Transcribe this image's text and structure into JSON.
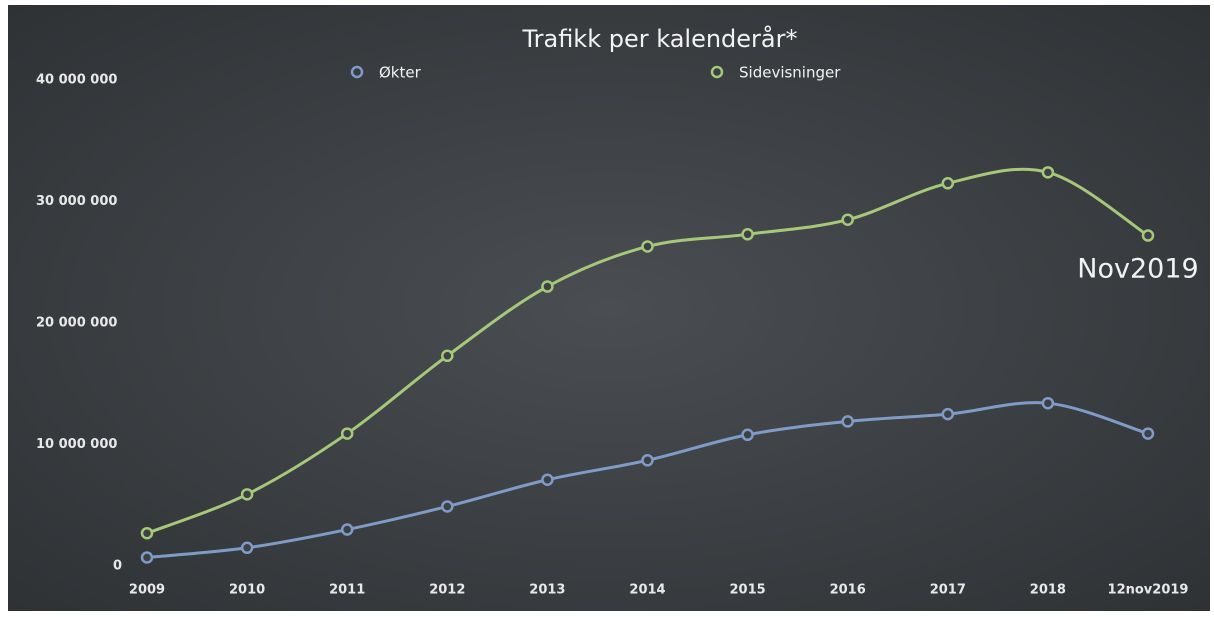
{
  "chart_data": {
    "type": "line",
    "title": "Trafikk per kalenderår*",
    "categories": [
      "2009",
      "2010",
      "2011",
      "2012",
      "2013",
      "2014",
      "2015",
      "2016",
      "2017",
      "2018",
      "12nov2019"
    ],
    "series": [
      {
        "name": "Økter",
        "color": "#7f9bc6",
        "values": [
          700000,
          1500000,
          3000000,
          4900000,
          7100000,
          8700000,
          10800000,
          11900000,
          12500000,
          13400000,
          10900000
        ]
      },
      {
        "name": "Sidevisninger",
        "color": "#a6c87a",
        "values": [
          2700000,
          5900000,
          10900000,
          17300000,
          23000000,
          26300000,
          27300000,
          28500000,
          31500000,
          32400000,
          27200000
        ]
      }
    ],
    "ylim": [
      0,
      40000000
    ],
    "yticks": [
      0,
      {
        "value": 10000000,
        "label": "10 000 000"
      },
      {
        "value": 20000000,
        "label": "20 000 000"
      },
      {
        "value": 30000000,
        "label": "30 000 000"
      },
      {
        "value": 40000000,
        "label": "40 000 000"
      }
    ],
    "grid": false,
    "annotation": "Nov2019"
  }
}
